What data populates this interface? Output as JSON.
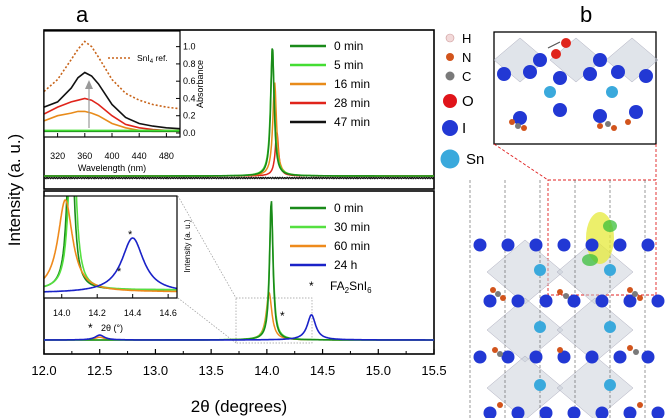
{
  "figure": {
    "panel_a_label": "a",
    "panel_b_label": "b",
    "y_axis_label": "Intensity (a. u.)",
    "x_axis_label": "2θ (degrees)",
    "colors": {
      "t0": "#1a8a1a",
      "t5": "#44dd33",
      "t16": "#e88b1a",
      "t28": "#e0241b",
      "t47": "#111111",
      "t30": "#55e040",
      "t60": "#ee8a1c",
      "t24h": "#1a22c8",
      "ref": "#c8641a"
    }
  },
  "chart_data": [
    {
      "type": "line",
      "title": "Top panel XRD",
      "xlabel": "2θ (degrees)",
      "ylabel": "Intensity (a. u.)",
      "xlim": [
        12.0,
        15.5
      ],
      "series": [
        {
          "name": "0 min",
          "peak_x": 14.05,
          "peak_height": 1.0
        },
        {
          "name": "5 min",
          "peak_x": 14.05,
          "peak_height": 0.98
        },
        {
          "name": "16 min",
          "peak_x": 14.07,
          "peak_height": 0.72
        },
        {
          "name": "28 min",
          "peak_x": 14.09,
          "peak_height": 0.34
        },
        {
          "name": "47 min",
          "peak_x": 14.1,
          "peak_height": 0.02
        }
      ],
      "legend": [
        "0 min",
        "5 min",
        "16 min",
        "28 min",
        "47 min"
      ]
    },
    {
      "type": "line",
      "title": "Top inset absorbance",
      "xlabel": "Wavelength (nm)",
      "ylabel": "Absorbance",
      "xlim": [
        300,
        500
      ],
      "ylim": [
        0,
        1.1
      ],
      "x_ticks": [
        "320",
        "360",
        "400",
        "440",
        "480"
      ],
      "y_ticks": [
        "0.0",
        "0.2",
        "0.4",
        "0.6",
        "0.8",
        "1.0"
      ],
      "annotation": "SnI4 ref.",
      "series": [
        {
          "name": "SnI4 ref.",
          "x": [
            300,
            320,
            340,
            350,
            360,
            370,
            380,
            400,
            420,
            440,
            460,
            480,
            500
          ],
          "y": [
            0.48,
            0.62,
            0.85,
            0.97,
            1.06,
            1.0,
            0.88,
            0.62,
            0.46,
            0.38,
            0.33,
            0.3,
            0.28
          ]
        },
        {
          "name": "47 min",
          "x": [
            300,
            320,
            340,
            350,
            360,
            370,
            380,
            400,
            420,
            440,
            460,
            480,
            500
          ],
          "y": [
            0.3,
            0.36,
            0.52,
            0.64,
            0.7,
            0.66,
            0.57,
            0.33,
            0.18,
            0.11,
            0.08,
            0.06,
            0.05
          ]
        },
        {
          "name": "28 min",
          "x": [
            300,
            320,
            340,
            350,
            360,
            370,
            380,
            400,
            420,
            440,
            460,
            480,
            500
          ],
          "y": [
            0.22,
            0.3,
            0.36,
            0.38,
            0.4,
            0.38,
            0.33,
            0.2,
            0.1,
            0.06,
            0.04,
            0.03,
            0.03
          ]
        },
        {
          "name": "16 min",
          "x": [
            300,
            320,
            340,
            350,
            360,
            370,
            380,
            400,
            420,
            440,
            460,
            480,
            500
          ],
          "y": [
            0.14,
            0.2,
            0.23,
            0.25,
            0.25,
            0.23,
            0.2,
            0.11,
            0.06,
            0.03,
            0.02,
            0.02,
            0.02
          ]
        },
        {
          "name": "0 min",
          "x": [
            300,
            340,
            380,
            420,
            460,
            500
          ],
          "y": [
            0.02,
            0.02,
            0.02,
            0.02,
            0.02,
            0.02
          ]
        },
        {
          "name": "5 min",
          "x": [
            300,
            340,
            380,
            420,
            460,
            500
          ],
          "y": [
            0.03,
            0.03,
            0.03,
            0.03,
            0.03,
            0.03
          ]
        }
      ]
    },
    {
      "type": "line",
      "title": "Bottom panel XRD",
      "xlabel": "2θ (degrees)",
      "ylabel": "Intensity (a. u.)",
      "xlim": [
        12.0,
        15.5
      ],
      "x_ticks": [
        "12.0",
        "12.5",
        "13.0",
        "13.5",
        "14.0",
        "14.5",
        "15.0",
        "15.5"
      ],
      "series": [
        {
          "name": "0 min",
          "peak_x": 14.04,
          "peak_height": 1.0
        },
        {
          "name": "30 min",
          "peak_x": 14.04,
          "peak_height": 0.98
        },
        {
          "name": "60 min",
          "peak_x": 14.02,
          "peak_height": 0.34
        },
        {
          "name": "24 h",
          "peak_x": 14.4,
          "peak_height": 0.18
        }
      ],
      "marker_note": "* FA2SnI6",
      "legend": [
        "0 min",
        "30 min",
        "60 min",
        "24 h",
        "FA2SnI6"
      ]
    },
    {
      "type": "line",
      "title": "Bottom inset zoom",
      "xlabel": "2θ (°)",
      "ylabel": "Intensity (a. u.)",
      "xlim": [
        13.9,
        14.65
      ],
      "x_ticks": [
        "14.0",
        "14.2",
        "14.4",
        "14.6"
      ]
    }
  ],
  "panel_b": {
    "legend": [
      {
        "symbol": "H",
        "color": "#f2d9d9"
      },
      {
        "symbol": "N",
        "color": "#d2541c"
      },
      {
        "symbol": "C",
        "color": "#7a7a7a"
      },
      {
        "symbol": "O",
        "color": "#e0141a"
      },
      {
        "symbol": "I",
        "color": "#2238d4"
      },
      {
        "symbol": "Sn",
        "color": "#3aa9dc"
      }
    ]
  },
  "labels": {
    "ref_label_main": "SnI",
    "ref_label_sub": "4",
    "ref_label_tail": " ref.",
    "fa_label_main": "FA",
    "fa_label_sub1": "2",
    "fa_label_mid": "SnI",
    "fa_label_sub2": "6",
    "star": "*",
    "inset_top_x": "Wavelength (nm)",
    "inset_top_y": "Absorbance",
    "inset_bottom_x": "2θ (°)",
    "inset_bottom_y": "Intensity (a. u.)"
  }
}
